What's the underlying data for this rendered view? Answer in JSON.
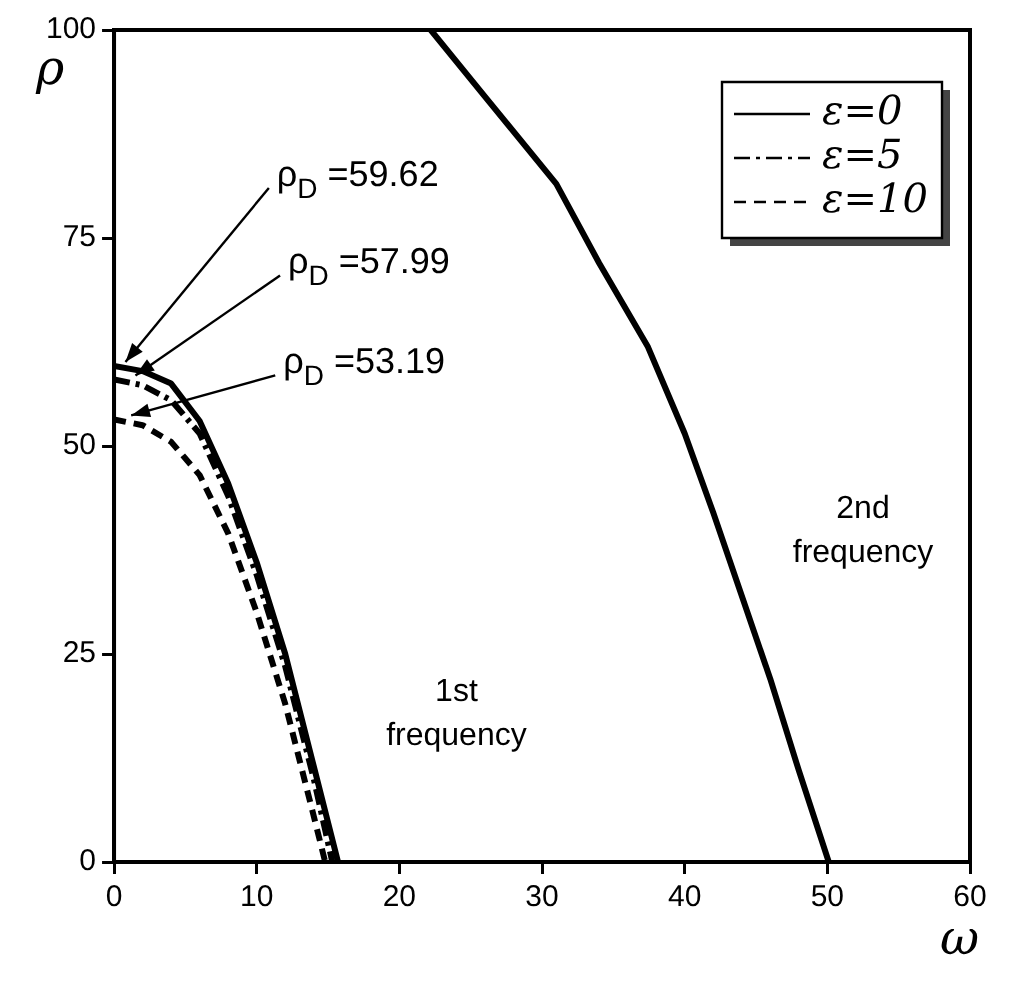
{
  "chart_data": {
    "type": "line",
    "xlabel": "ω",
    "ylabel": "ρ",
    "xlim": [
      0,
      60
    ],
    "xticks": [
      0,
      10,
      20,
      30,
      40,
      50,
      60
    ],
    "ylim": [
      0,
      100
    ],
    "yticks": [
      0,
      25,
      50,
      75,
      100
    ],
    "grid": false,
    "legend": "top right",
    "marker": "none",
    "series": [
      {
        "name": "ε=0",
        "color": "#000000",
        "line_style": "solid",
        "x": [
          0,
          2,
          4,
          6,
          8,
          10,
          12,
          14,
          15.7,
          null,
          22.2,
          26,
          31,
          34,
          37.4,
          40,
          42,
          44,
          46,
          48,
          50.1
        ],
        "values": [
          59.62,
          59,
          57.5,
          53,
          45.5,
          36,
          25,
          11.5,
          0,
          null,
          100,
          92,
          81.5,
          72,
          62,
          51.5,
          42,
          32,
          22,
          11,
          0
        ]
      },
      {
        "name": "ε=5",
        "color": "#000000",
        "line_style": "dashdot",
        "x": [
          0,
          2,
          4,
          6,
          8,
          10,
          12,
          14,
          15.3
        ],
        "values": [
          57.99,
          57.3,
          55.5,
          51.5,
          44,
          34.5,
          23.5,
          10,
          0
        ]
      },
      {
        "name": "ε=10",
        "color": "#000000",
        "line_style": "dashed",
        "x": [
          0,
          2,
          4,
          6,
          8,
          10,
          12,
          14,
          14.8
        ],
        "values": [
          53.19,
          52.5,
          50.5,
          46.5,
          39.5,
          30,
          19,
          5.5,
          0
        ]
      }
    ],
    "annotations": [
      {
        "text": "ρ$_{D}$ =59.62",
        "x": 0.8,
        "y": 59.62
      },
      {
        "text": "ρ$_{D}$ =57.99",
        "x": 1.5,
        "y": 57.99
      },
      {
        "text": "ρ$_{D}$ =53.19",
        "x": 1.2,
        "y": 53.19
      },
      "1st frequency",
      "2nd frequency"
    ]
  }
}
